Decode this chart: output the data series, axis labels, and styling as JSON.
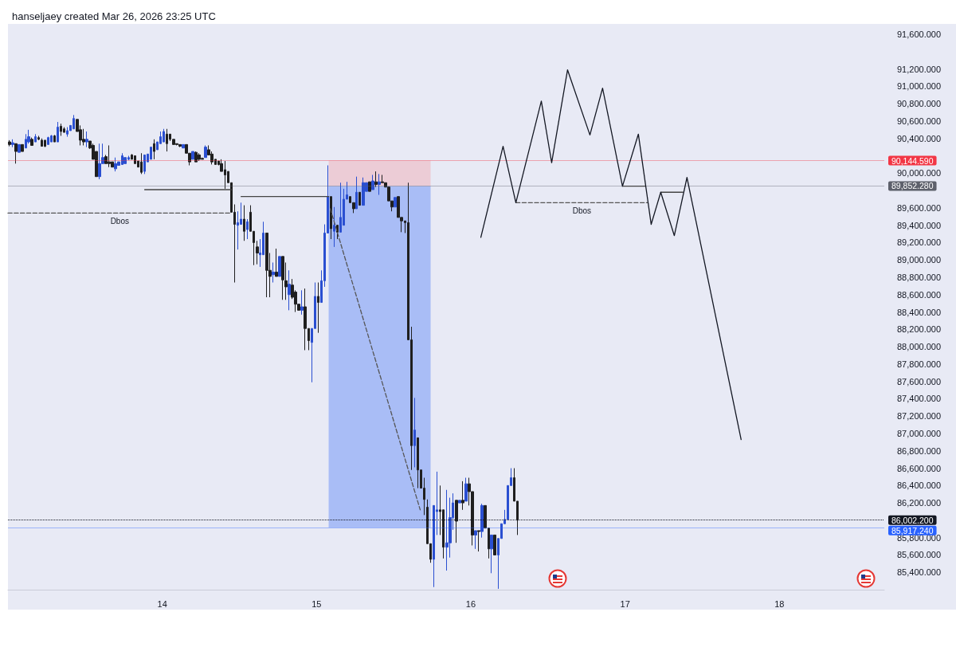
{
  "chart_data": {
    "type": "candlestick",
    "title": "hanseljaey created Mar 26, 2026 23:25 UTC",
    "xlim": [
      13.0,
      18.68
    ],
    "xticks": [
      14,
      15,
      16,
      17,
      18
    ],
    "ylim": [
      85200,
      91720
    ],
    "yticks": [
      {
        "value": 91600,
        "label": "91,600.000"
      },
      {
        "value": 91200,
        "label": "91,200.000"
      },
      {
        "value": 91000,
        "label": "91,000.000"
      },
      {
        "value": 90800,
        "label": "90,800.000"
      },
      {
        "value": 90600,
        "label": "90,600.000"
      },
      {
        "value": 90400,
        "label": "90,400.000"
      },
      {
        "value": 90000,
        "label": "90,000.000"
      },
      {
        "value": 89600,
        "label": "89,600.000"
      },
      {
        "value": 89400,
        "label": "89,400.000"
      },
      {
        "value": 89200,
        "label": "89,200.000"
      },
      {
        "value": 89000,
        "label": "89,000.000"
      },
      {
        "value": 88800,
        "label": "88,800.000"
      },
      {
        "value": 88600,
        "label": "88,600.000"
      },
      {
        "value": 88400,
        "label": "88,400.000"
      },
      {
        "value": 88200,
        "label": "88,200.000"
      },
      {
        "value": 88000,
        "label": "88,000.000"
      },
      {
        "value": 87800,
        "label": "87,800.000"
      },
      {
        "value": 87600,
        "label": "87,600.000"
      },
      {
        "value": 87400,
        "label": "87,400.000"
      },
      {
        "value": 87200,
        "label": "87,200.000"
      },
      {
        "value": 87000,
        "label": "87,000.000"
      },
      {
        "value": 86800,
        "label": "86,800.000"
      },
      {
        "value": 86600,
        "label": "86,600.000"
      },
      {
        "value": 86400,
        "label": "86,400.000"
      },
      {
        "value": 86200,
        "label": "86,200.000"
      },
      {
        "value": 85800,
        "label": "85,800.000"
      },
      {
        "value": 85600,
        "label": "85,600.000"
      },
      {
        "value": 85400,
        "label": "85,400.000"
      }
    ],
    "marker": "none",
    "x": [
      13.01,
      13.031,
      13.052,
      13.073,
      13.094,
      13.115,
      13.135,
      13.156,
      13.177,
      13.198,
      13.219,
      13.24,
      13.26,
      13.281,
      13.302,
      13.323,
      13.344,
      13.365,
      13.385,
      13.406,
      13.427,
      13.448,
      13.469,
      13.49,
      13.51,
      13.531,
      13.552,
      13.573,
      13.594,
      13.615,
      13.635,
      13.656,
      13.677,
      13.698,
      13.719,
      13.74,
      13.76,
      13.781,
      13.802,
      13.823,
      13.844,
      13.865,
      13.885,
      13.906,
      13.927,
      13.948,
      13.969,
      13.99,
      14.01,
      14.031,
      14.052,
      14.073,
      14.094,
      14.115,
      14.135,
      14.156,
      14.177,
      14.198,
      14.219,
      14.24,
      14.26,
      14.281,
      14.302,
      14.323,
      14.344,
      14.365,
      14.385,
      14.406,
      14.427,
      14.448,
      14.469,
      14.49,
      14.51,
      14.531,
      14.552,
      14.573,
      14.594,
      14.615,
      14.635,
      14.656,
      14.677,
      14.698,
      14.719,
      14.74,
      14.76,
      14.781,
      14.802,
      14.823,
      14.844,
      14.865,
      14.885,
      14.906,
      14.927,
      14.948,
      14.969,
      14.99,
      15.01,
      15.031,
      15.052,
      15.073,
      15.094,
      15.115,
      15.135,
      15.156,
      15.177,
      15.198,
      15.219,
      15.24,
      15.26,
      15.281,
      15.302,
      15.323,
      15.344,
      15.365,
      15.385,
      15.406,
      15.427,
      15.448,
      15.469,
      15.49,
      15.51,
      15.531,
      15.552,
      15.573,
      15.594,
      15.615,
      15.635,
      15.656,
      15.677,
      15.698,
      15.719,
      15.74,
      15.76,
      15.781,
      15.802,
      15.823,
      15.844,
      15.865,
      15.885,
      15.906,
      15.927,
      15.948,
      15.969,
      15.99,
      16.01,
      16.031,
      16.052,
      16.073,
      16.094,
      16.115,
      16.135,
      16.156,
      16.177,
      16.198,
      16.219,
      16.24,
      16.26,
      16.281,
      16.302
    ],
    "ohlc": [
      [
        90360,
        90380,
        90310,
        90330
      ],
      [
        90330,
        90390,
        90300,
        90350
      ],
      [
        90340,
        90340,
        90110,
        90250
      ],
      [
        90240,
        90330,
        90240,
        90330
      ],
      [
        90330,
        90330,
        90250,
        90250
      ],
      [
        90290,
        90450,
        90290,
        90390
      ],
      [
        90360,
        90500,
        90340,
        90420
      ],
      [
        90390,
        90410,
        90320,
        90320
      ],
      [
        90360,
        90450,
        90360,
        90420
      ],
      [
        90410,
        90430,
        90380,
        90390
      ],
      [
        90380,
        90400,
        90310,
        90310
      ],
      [
        90380,
        90380,
        90300,
        90310
      ],
      [
        90330,
        90420,
        90330,
        90410
      ],
      [
        90360,
        90440,
        90360,
        90430
      ],
      [
        90430,
        90440,
        90360,
        90360
      ],
      [
        90360,
        90590,
        90360,
        90530
      ],
      [
        90540,
        90570,
        90430,
        90480
      ],
      [
        90510,
        90530,
        90470,
        90470
      ],
      [
        90450,
        90530,
        90420,
        90490
      ],
      [
        90490,
        90550,
        90490,
        90550
      ],
      [
        90510,
        90670,
        90510,
        90630
      ],
      [
        90620,
        90620,
        90480,
        90480
      ],
      [
        90500,
        90550,
        90320,
        90380
      ],
      [
        90390,
        90510,
        90320,
        90360
      ],
      [
        90360,
        90480,
        90300,
        90390
      ],
      [
        90370,
        90370,
        90280,
        90290
      ],
      [
        90320,
        90340,
        90160,
        90160
      ],
      [
        90250,
        90250,
        89960,
        89960
      ],
      [
        89960,
        90340,
        89930,
        90110
      ],
      [
        90110,
        90340,
        90110,
        90180
      ],
      [
        90190,
        90210,
        90110,
        90110
      ],
      [
        90130,
        90320,
        90070,
        90110
      ],
      [
        90130,
        90130,
        90070,
        90070
      ],
      [
        90050,
        90180,
        90020,
        90110
      ],
      [
        90090,
        90130,
        90090,
        90130
      ],
      [
        90100,
        90230,
        90100,
        90200
      ],
      [
        90110,
        90180,
        90110,
        90180
      ],
      [
        90160,
        90200,
        90150,
        90180
      ],
      [
        90210,
        90220,
        90160,
        90160
      ],
      [
        90200,
        90200,
        90110,
        90110
      ],
      [
        90140,
        90140,
        90070,
        90070
      ],
      [
        90130,
        90230,
        89990,
        90010
      ],
      [
        90020,
        90210,
        89990,
        90210
      ],
      [
        90130,
        90220,
        90130,
        90220
      ],
      [
        90160,
        90300,
        90160,
        90300
      ],
      [
        90340,
        90390,
        90160,
        90250
      ],
      [
        90270,
        90360,
        90270,
        90360
      ],
      [
        90340,
        90480,
        90340,
        90420
      ],
      [
        90360,
        90510,
        90360,
        90480
      ],
      [
        90450,
        90510,
        90250,
        90340
      ],
      [
        90450,
        90450,
        90370,
        90390
      ],
      [
        90390,
        90390,
        90330,
        90330
      ],
      [
        90340,
        90340,
        90320,
        90330
      ],
      [
        90330,
        90330,
        90300,
        90310
      ],
      [
        90290,
        90330,
        90290,
        90330
      ],
      [
        90330,
        90330,
        90230,
        90230
      ],
      [
        90230,
        90230,
        90090,
        90130
      ],
      [
        90160,
        90250,
        90160,
        90250
      ],
      [
        90240,
        90250,
        90130,
        90130
      ],
      [
        90210,
        90230,
        90140,
        90160
      ],
      [
        90170,
        90180,
        90160,
        90160
      ],
      [
        90180,
        90320,
        90180,
        90300
      ],
      [
        90270,
        90320,
        90210,
        90210
      ],
      [
        90220,
        90250,
        90100,
        90130
      ],
      [
        90160,
        90160,
        90100,
        90100
      ],
      [
        90140,
        90140,
        90090,
        90100
      ],
      [
        90110,
        90160,
        90020,
        90020
      ],
      [
        90040,
        90140,
        89820,
        89980
      ],
      [
        90020,
        90020,
        89890,
        89890
      ],
      [
        89890,
        89890,
        89550,
        89550
      ],
      [
        89550,
        89640,
        88740,
        89410
      ],
      [
        89400,
        89560,
        89120,
        89430
      ],
      [
        89410,
        89660,
        89410,
        89470
      ],
      [
        89470,
        89630,
        89220,
        89330
      ],
      [
        89350,
        89470,
        89240,
        89440
      ],
      [
        89550,
        89630,
        89330,
        89330
      ],
      [
        89330,
        89330,
        88940,
        89200
      ],
      [
        89150,
        89220,
        88950,
        89080
      ],
      [
        89060,
        89240,
        88920,
        89080
      ],
      [
        89060,
        89440,
        89060,
        89310
      ],
      [
        89310,
        89310,
        88570,
        88880
      ],
      [
        88880,
        89080,
        88570,
        88810
      ],
      [
        88830,
        88970,
        88740,
        88860
      ],
      [
        88860,
        89130,
        88810,
        88810
      ],
      [
        88810,
        89040,
        88810,
        89040
      ],
      [
        89040,
        89040,
        88540,
        88770
      ],
      [
        88760,
        88970,
        88540,
        88690
      ],
      [
        88600,
        88880,
        88420,
        88720
      ],
      [
        88710,
        88780,
        88550,
        88570
      ],
      [
        88630,
        88650,
        88400,
        88490
      ],
      [
        88490,
        88490,
        88420,
        88420
      ],
      [
        88420,
        88650,
        88370,
        88460
      ],
      [
        88460,
        88670,
        87960,
        88210
      ],
      [
        88210,
        88210,
        87960,
        88070
      ],
      [
        88050,
        88210,
        87590,
        88210
      ],
      [
        88210,
        88740,
        88210,
        88580
      ],
      [
        88580,
        88740,
        88160,
        88510
      ],
      [
        88510,
        88880,
        88510,
        88760
      ],
      [
        88760,
        89410,
        88690,
        89310
      ],
      [
        89310,
        90090,
        89310,
        89730
      ],
      [
        89730,
        89730,
        89240,
        89360
      ],
      [
        89330,
        89610,
        89150,
        89400
      ],
      [
        89400,
        89400,
        89240,
        89320
      ],
      [
        89320,
        89890,
        89320,
        89490
      ],
      [
        89400,
        89820,
        89400,
        89700
      ],
      [
        89700,
        89900,
        89700,
        89750
      ],
      [
        89730,
        89730,
        89660,
        89660
      ],
      [
        89660,
        89660,
        89540,
        89590
      ],
      [
        89590,
        89960,
        89590,
        89780
      ],
      [
        89780,
        89780,
        89630,
        89630
      ],
      [
        89630,
        89950,
        89630,
        89890
      ],
      [
        89790,
        89890,
        89790,
        89890
      ],
      [
        89900,
        89900,
        89790,
        89790
      ],
      [
        89810,
        89980,
        89810,
        89910
      ],
      [
        89900,
        90020,
        89840,
        89870
      ],
      [
        89870,
        89990,
        89750,
        89900
      ],
      [
        89900,
        89980,
        89890,
        89890
      ],
      [
        89890,
        89890,
        89840,
        89840
      ],
      [
        89840,
        89840,
        89680,
        89680
      ],
      [
        89680,
        89680,
        89560,
        89610
      ],
      [
        89610,
        89720,
        89610,
        89720
      ],
      [
        89730,
        89730,
        89490,
        89490
      ],
      [
        89490,
        89490,
        89320,
        89450
      ],
      [
        89450,
        89450,
        89310,
        89430
      ],
      [
        89430,
        89890,
        88080,
        88080
      ],
      [
        88080,
        88230,
        86580,
        86860
      ],
      [
        86860,
        87410,
        86610,
        87040
      ],
      [
        86950,
        86950,
        86370,
        86580
      ],
      [
        86580,
        86580,
        86370,
        86370
      ],
      [
        86370,
        86490,
        86060,
        86240
      ],
      [
        86150,
        86240,
        85730,
        85730
      ],
      [
        85730,
        85730,
        85510,
        85550
      ],
      [
        85550,
        86170,
        85230,
        86170
      ],
      [
        86100,
        86560,
        85830,
        86120
      ],
      [
        86120,
        86400,
        85830,
        86100
      ],
      [
        86120,
        86120,
        85560,
        85690
      ],
      [
        85690,
        86350,
        85420,
        85740
      ],
      [
        85740,
        86260,
        85570,
        86030
      ],
      [
        86030,
        86310,
        85890,
        86200
      ],
      [
        86230,
        86230,
        85740,
        85990
      ],
      [
        86200,
        86230,
        86200,
        86230
      ],
      [
        86230,
        86450,
        86120,
        86200
      ],
      [
        86220,
        86490,
        86220,
        86420
      ],
      [
        86420,
        86490,
        86170,
        86330
      ],
      [
        86330,
        86330,
        85710,
        85830
      ],
      [
        85830,
        85880,
        85670,
        85880
      ],
      [
        85880,
        85880,
        85640,
        85870
      ],
      [
        85870,
        86190,
        85800,
        86170
      ],
      [
        86170,
        86170,
        85910,
        85910
      ],
      [
        85910,
        85910,
        85560,
        85670
      ],
      [
        85670,
        85830,
        85390,
        85830
      ],
      [
        85830,
        85830,
        85600,
        85600
      ],
      [
        85600,
        85790,
        85210,
        85790
      ],
      [
        85790,
        85960,
        85790,
        85960
      ],
      [
        85960,
        86120,
        85960,
        86010
      ],
      [
        86010,
        86400,
        86010,
        86400
      ],
      [
        86400,
        86600,
        86400,
        86490
      ],
      [
        86490,
        86600,
        86220,
        86220
      ],
      [
        86220,
        86220,
        85830,
        86000
      ]
    ],
    "colors": [
      "#1f1f1f",
      "#2a4fd1",
      "#1f1f1f",
      "#2a4fd1",
      "#1f1f1f",
      "#2a4fd1",
      "#2a4fd1",
      "#1f1f1f",
      "#2a4fd1",
      "#1f1f1f",
      "#1f1f1f",
      "#1f1f1f",
      "#2a4fd1",
      "#2a4fd1",
      "#1f1f1f",
      "#2a4fd1",
      "#1f1f1f",
      "#1f1f1f",
      "#2a4fd1",
      "#2a4fd1",
      "#2a4fd1",
      "#1f1f1f",
      "#1f1f1f",
      "#1f1f1f",
      "#2a4fd1",
      "#1f1f1f",
      "#1f1f1f",
      "#1f1f1f",
      "#2a4fd1",
      "#2a4fd1",
      "#1f1f1f",
      "#1f1f1f",
      "#1f1f1f",
      "#2a4fd1",
      "#2a4fd1",
      "#2a4fd1",
      "#2a4fd1",
      "#2a4fd1",
      "#1f1f1f",
      "#1f1f1f",
      "#1f1f1f",
      "#1f1f1f",
      "#2a4fd1",
      "#2a4fd1",
      "#2a4fd1",
      "#1f1f1f",
      "#2a4fd1",
      "#2a4fd1",
      "#2a4fd1",
      "#1f1f1f",
      "#1f1f1f",
      "#1f1f1f",
      "#1f1f1f",
      "#1f1f1f",
      "#2a4fd1",
      "#1f1f1f",
      "#1f1f1f",
      "#2a4fd1",
      "#1f1f1f",
      "#1f1f1f",
      "#1f1f1f",
      "#2a4fd1",
      "#1f1f1f",
      "#1f1f1f",
      "#1f1f1f",
      "#1f1f1f",
      "#1f1f1f",
      "#1f1f1f",
      "#1f1f1f",
      "#1f1f1f",
      "#1f1f1f",
      "#2a4fd1",
      "#2a4fd1",
      "#1f1f1f",
      "#2a4fd1",
      "#1f1f1f",
      "#1f1f1f",
      "#1f1f1f",
      "#2a4fd1",
      "#2a4fd1",
      "#1f1f1f",
      "#1f1f1f",
      "#2a4fd1",
      "#1f1f1f",
      "#2a4fd1",
      "#1f1f1f",
      "#1f1f1f",
      "#2a4fd1",
      "#1f1f1f",
      "#1f1f1f",
      "#1f1f1f",
      "#2a4fd1",
      "#1f1f1f",
      "#1f1f1f",
      "#2a4fd1",
      "#2a4fd1",
      "#1f1f1f",
      "#2a4fd1",
      "#2a4fd1",
      "#2a4fd1",
      "#1f1f1f",
      "#2a4fd1",
      "#1f1f1f",
      "#2a4fd1",
      "#2a4fd1",
      "#2a4fd1",
      "#1f1f1f",
      "#1f1f1f",
      "#2a4fd1",
      "#1f1f1f",
      "#2a4fd1",
      "#2a4fd1",
      "#1f1f1f",
      "#2a4fd1",
      "#1f1f1f",
      "#2a4fd1",
      "#1f1f1f",
      "#1f1f1f",
      "#1f1f1f",
      "#1f1f1f",
      "#2a4fd1",
      "#1f1f1f",
      "#1f1f1f",
      "#1f1f1f",
      "#1f1f1f",
      "#1f1f1f",
      "#2a4fd1",
      "#1f1f1f",
      "#1f1f1f",
      "#1f1f1f",
      "#1f1f1f",
      "#1f1f1f",
      "#2a4fd1",
      "#2a4fd1",
      "#1f1f1f",
      "#1f1f1f",
      "#2a4fd1",
      "#2a4fd1",
      "#2a4fd1",
      "#1f1f1f",
      "#2a4fd1",
      "#1f1f1f",
      "#2a4fd1",
      "#1f1f1f",
      "#1f1f1f",
      "#2a4fd1",
      "#1f1f1f",
      "#2a4fd1",
      "#1f1f1f",
      "#1f1f1f",
      "#2a4fd1",
      "#1f1f1f",
      "#2a4fd1",
      "#2a4fd1",
      "#2a4fd1",
      "#2a4fd1",
      "#2a4fd1",
      "#1f1f1f",
      "#1f1f1f"
    ],
    "series": [
      {
        "type": "line",
        "name": "Dbos",
        "x": [
          13.0,
          14.449
        ],
        "values": [
          89540,
          89540
        ],
        "color": "#555555",
        "line_style": "dashed"
      },
      {
        "type": "line",
        "x": [
          13.886,
          14.449
        ],
        "values": [
          89810,
          89810
        ],
        "color": "#444444",
        "line_style": "solid"
      },
      {
        "type": "line",
        "x": [
          14.511,
          15.079
        ],
        "values": [
          89730,
          89730
        ],
        "color": "#444444",
        "line_style": "solid"
      },
      {
        "type": "line",
        "x": [
          15.089,
          15.672
        ],
        "values": [
          89590,
          86120
        ],
        "color": "#555555",
        "line_style": "dashed"
      },
      {
        "type": "line",
        "name": "Dbos",
        "x": [
          16.292,
          17.148
        ],
        "values": [
          89660,
          89660
        ],
        "color": "#555555",
        "line_style": "dashed"
      },
      {
        "type": "line",
        "x": [
          16.983,
          17.132
        ],
        "values": [
          89850,
          89850
        ],
        "color": "#444444",
        "line_style": "solid"
      },
      {
        "type": "line",
        "x": [
          17.231,
          17.375
        ],
        "values": [
          89780,
          89780
        ],
        "color": "#444444",
        "line_style": "solid"
      },
      {
        "type": "bar",
        "x": [
          15.409
        ],
        "base": [
          89852.28
        ],
        "values": [
          292.31
        ],
        "color": "#ecccd6"
      },
      {
        "type": "bar",
        "x": [
          15.409
        ],
        "base": [
          85917.24
        ],
        "values": [
          3935.04
        ],
        "color": "#a9bdf6"
      },
      {
        "type": "line",
        "x": [
          16.065,
          16.209,
          16.292,
          16.457,
          16.524,
          16.627,
          16.772,
          16.854,
          16.983,
          17.086,
          17.169,
          17.231,
          17.319,
          17.401,
          17.752
        ],
        "values": [
          89260,
          90310,
          89660,
          90830,
          90120,
          91190,
          90440,
          90980,
          89850,
          90450,
          89410,
          89780,
          89280,
          89950,
          86930
        ],
        "color": "#131722",
        "line_style": "solid"
      }
    ],
    "ref_lines": [
      {
        "axis": "y",
        "value": 90144.59,
        "label": "90,144.590",
        "color": "#f23645",
        "line_style": "solid"
      },
      {
        "axis": "y",
        "value": 89852.28,
        "label": "89,852.280",
        "color": "#5d606b",
        "line_style": "solid"
      },
      {
        "axis": "y",
        "value": 86002.2,
        "label": "86,002.200",
        "color": "#131722",
        "line_style": "dotted"
      },
      {
        "axis": "y",
        "value": 85917.24,
        "label": "85,917.240",
        "color": "#2962ff",
        "line_style": "solid"
      }
    ]
  }
}
